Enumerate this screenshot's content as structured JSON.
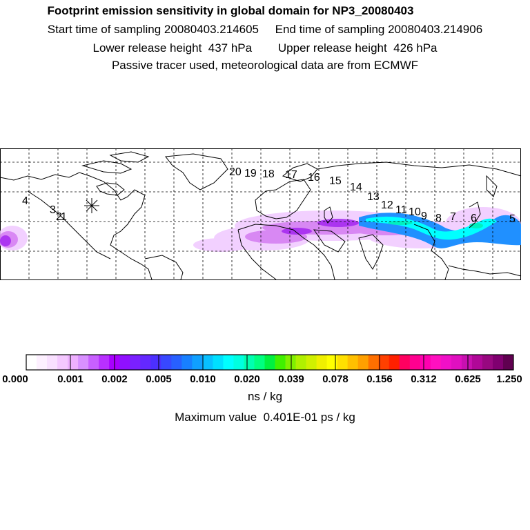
{
  "header": {
    "title": "Footprint emission sensitivity in global domain for NP3_20080403",
    "sampling_line": "Start time of sampling 20080403.214605     End time of sampling 20080403.214906",
    "release_line": "Lower release height  437 hPa        Upper release height  426 hPa",
    "tracer_line": "Passive tracer used, meteorological data are from ECMWF"
  },
  "map": {
    "release_marker_icon": "asterisk-icon",
    "trajectory_labels": [
      "1",
      "2",
      "3",
      "4",
      "5",
      "6",
      "7",
      "8",
      "9",
      "10",
      "11",
      "12",
      "13",
      "14",
      "15",
      "16",
      "17",
      "18",
      "19",
      "20"
    ],
    "plume_colors": [
      "#f0c8ff",
      "#d070f0",
      "#a020f0",
      "#7030f0",
      "#2090ff",
      "#00ffff",
      "#00f0c0"
    ]
  },
  "colorbar": {
    "tick_labels": [
      "0.000",
      "0.001",
      "0.002",
      "0.005",
      "0.010",
      "0.020",
      "0.039",
      "0.078",
      "0.156",
      "0.312",
      "0.625",
      "1.250"
    ],
    "colors": [
      "#ffffff",
      "#fdf0ff",
      "#f9e0ff",
      "#f4c8ff",
      "#eeb0ff",
      "#d890ff",
      "#c860ff",
      "#b830ff",
      "#a800ff",
      "#9010ff",
      "#7a20ff",
      "#6428ff",
      "#4c30ff",
      "#3848ff",
      "#2860ff",
      "#1880ff",
      "#10a0ff",
      "#08c0ff",
      "#00e0ff",
      "#00ffff",
      "#00ffe0",
      "#00ffb0",
      "#00ff80",
      "#00f040",
      "#40f000",
      "#80f000",
      "#b0f000",
      "#d0f000",
      "#f0f000",
      "#ffff00",
      "#ffe000",
      "#ffc000",
      "#ffa000",
      "#ff7000",
      "#ff4000",
      "#ff2000",
      "#ff0060",
      "#ff0090",
      "#ff00b0",
      "#ff10c0",
      "#f010c8",
      "#e010c0",
      "#c810b0",
      "#b00898",
      "#980880",
      "#800070",
      "#600050"
    ],
    "units": "ns / kg"
  },
  "summary": {
    "max_value_text": "Maximum value  0.401E-01 ps / kg"
  }
}
